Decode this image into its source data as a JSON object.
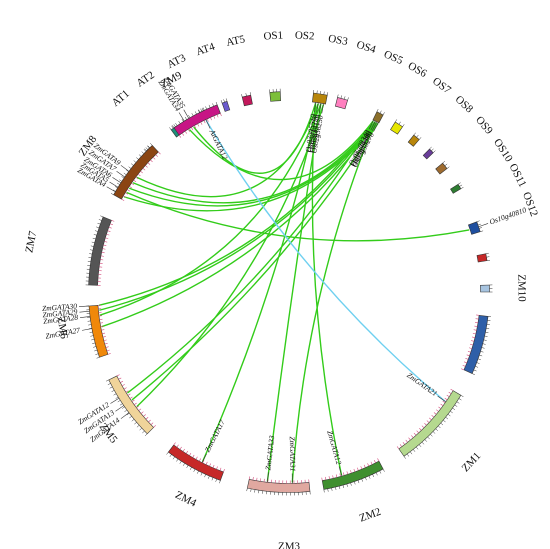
{
  "diagram": {
    "type": "circos",
    "colors": {
      "maize_maize_link": "#33cc1a",
      "arabidopsis_link": "#6fd0f0"
    },
    "chromosomes": [
      {
        "id": "AT1",
        "label": "AT1",
        "color": "#2e8b57"
      },
      {
        "id": "AT2",
        "label": "AT2",
        "color": "#1f8f7a"
      },
      {
        "id": "AT3",
        "label": "AT3",
        "color": "#8a6d1e"
      },
      {
        "id": "AT4",
        "label": "AT4",
        "color": "#6a5acd"
      },
      {
        "id": "AT5",
        "label": "AT5",
        "color": "#c2185b"
      },
      {
        "id": "OS1",
        "label": "OS1",
        "color": "#7cbf3a"
      },
      {
        "id": "OS2",
        "label": "OS2",
        "color": "#b8860b"
      },
      {
        "id": "OS3",
        "label": "OS3",
        "color": "#ff7fbf"
      },
      {
        "id": "OS4",
        "label": "OS4",
        "color": "#8b6f2a"
      },
      {
        "id": "OS5",
        "label": "OS5",
        "color": "#e6e600"
      },
      {
        "id": "OS6",
        "label": "OS6",
        "color": "#b8860b"
      },
      {
        "id": "OS7",
        "label": "OS7",
        "color": "#6a3d9a"
      },
      {
        "id": "OS8",
        "label": "OS8",
        "color": "#9e6b2f"
      },
      {
        "id": "OS9",
        "label": "OS9",
        "color": "#2e7d32"
      },
      {
        "id": "OS10",
        "label": "OS10",
        "color": "#1f4f9f"
      },
      {
        "id": "OS11",
        "label": "OS11",
        "color": "#c62828"
      },
      {
        "id": "OS12",
        "label": "OS12",
        "color": "#a7c4e0"
      },
      {
        "id": "ZM10",
        "label": "ZM10",
        "color": "#2f5fa8"
      },
      {
        "id": "ZM1",
        "label": "ZM1",
        "color": "#b5d98f"
      },
      {
        "id": "ZM2",
        "label": "ZM2",
        "color": "#3f8f2f"
      },
      {
        "id": "ZM3",
        "label": "ZM3",
        "color": "#e0a8a0"
      },
      {
        "id": "ZM4",
        "label": "ZM4",
        "color": "#c62828"
      },
      {
        "id": "ZM5",
        "label": "ZM5",
        "color": "#f0d49a"
      },
      {
        "id": "ZM6",
        "label": "ZM6",
        "color": "#f0880a"
      },
      {
        "id": "ZM7",
        "label": "ZM7",
        "color": "#555555"
      },
      {
        "id": "ZM8",
        "label": "ZM8",
        "color": "#8b4513"
      },
      {
        "id": "ZM9",
        "label": "ZM9",
        "color": "#c71585"
      }
    ],
    "genes": [
      {
        "label": "AtGATA12"
      },
      {
        "label": "Os02g05510"
      },
      {
        "label": "Os02g12790"
      },
      {
        "label": "Os02g43150"
      },
      {
        "label": "Os02g56250"
      },
      {
        "label": "Os05g08340"
      },
      {
        "label": "Os05g44400"
      },
      {
        "label": "Os05g49280"
      },
      {
        "label": "Os05g50270"
      },
      {
        "label": "Os10g40810"
      },
      {
        "label": "ZmGATA21"
      },
      {
        "label": "ZmGATA12"
      },
      {
        "label": "ZmGATA31"
      },
      {
        "label": "ZmGATA33"
      },
      {
        "label": "ZmGATA17"
      },
      {
        "label": "ZmGATA12"
      },
      {
        "label": "ZmGATA13"
      },
      {
        "label": "ZmGATA14"
      },
      {
        "label": "ZmGATA27"
      },
      {
        "label": "ZmGATA28"
      },
      {
        "label": "ZmGATA29"
      },
      {
        "label": "ZmGATA30"
      },
      {
        "label": "ZmGATA4"
      },
      {
        "label": "ZmGATA5"
      },
      {
        "label": "ZmGATA6"
      },
      {
        "label": "ZmGATA7"
      },
      {
        "label": "ZmGATA9"
      },
      {
        "label": "ZmGATA34"
      },
      {
        "label": "ZmGATA35"
      }
    ],
    "links": [
      {
        "from": "ZmGATA35",
        "to": "Os02g05510",
        "kind": "maize_maize_link"
      },
      {
        "from": "ZmGATA34",
        "to": "Os05g08340",
        "kind": "maize_maize_link"
      },
      {
        "from": "ZmGATA9",
        "to": "Os02g12790",
        "kind": "maize_maize_link"
      },
      {
        "from": "ZmGATA7",
        "to": "Os05g44400",
        "kind": "maize_maize_link"
      },
      {
        "from": "ZmGATA6",
        "to": "Os05g49280",
        "kind": "maize_maize_link"
      },
      {
        "from": "ZmGATA5",
        "to": "Os10g40810",
        "kind": "maize_maize_link"
      },
      {
        "from": "ZmGATA4",
        "to": "Os05g50270",
        "kind": "maize_maize_link"
      },
      {
        "from": "ZmGATA30",
        "to": "Os05g08340",
        "kind": "maize_maize_link"
      },
      {
        "from": "ZmGATA29",
        "to": "Os05g44400",
        "kind": "maize_maize_link"
      },
      {
        "from": "ZmGATA28",
        "to": "Os02g43150",
        "kind": "maize_maize_link"
      },
      {
        "from": "ZmGATA27",
        "to": "Os05g49280",
        "kind": "maize_maize_link"
      },
      {
        "from": "ZmGATA14",
        "to": "Os02g56250",
        "kind": "maize_maize_link"
      },
      {
        "from": "ZmGATA13",
        "to": "Os05g50270",
        "kind": "maize_maize_link"
      },
      {
        "from": "ZmGATA12",
        "to": "Os02g05510",
        "kind": "maize_maize_link"
      },
      {
        "from": "ZmGATA17",
        "to": "Os02g12790",
        "kind": "maize_maize_link"
      },
      {
        "from": "ZmGATA33",
        "to": "Os02g43150",
        "kind": "maize_maize_link"
      },
      {
        "from": "ZmGATA31",
        "to": "Os05g44400",
        "kind": "maize_maize_link"
      },
      {
        "from": "ZmGATA12b",
        "to": "Os05g08340",
        "kind": "maize_maize_link"
      },
      {
        "from": "ZmGATA21",
        "to": "AtGATA12",
        "kind": "arabidopsis_link"
      }
    ]
  }
}
